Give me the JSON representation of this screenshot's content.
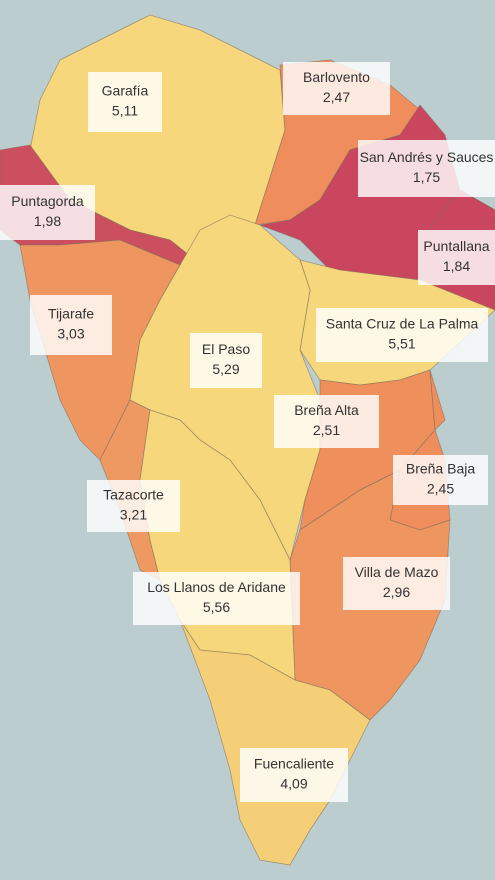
{
  "chart_data": {
    "type": "choropleth",
    "categories": [
      "Garafía",
      "Barlovento",
      "San Andrés y Sauces",
      "Puntagorda",
      "Puntallana",
      "Tijarafe",
      "Santa Cruz de La Palma",
      "El Paso",
      "Breña Alta",
      "Breña Baja",
      "Tazacorte",
      "Villa de Mazo",
      "Los Llanos de Aridane",
      "Fuencaliente"
    ],
    "values": [
      5.11,
      2.47,
      1.75,
      1.98,
      1.84,
      3.03,
      5.51,
      5.29,
      2.51,
      2.45,
      3.21,
      2.96,
      5.56,
      4.09
    ],
    "value_labels": [
      "5,11",
      "2,47",
      "1,75",
      "1,98",
      "1,84",
      "3,03",
      "5,51",
      "5,29",
      "2,51",
      "2,45",
      "3,21",
      "2,96",
      "5,56",
      "4,09"
    ],
    "colors": [
      "#f6d77c",
      "#ef8d5c",
      "#c9465e",
      "#cc4f60",
      "#c9465e",
      "#ef9560",
      "#f6d77c",
      "#f6d77c",
      "#ef8f5c",
      "#ef8d5c",
      "#ef9962",
      "#ef9560",
      "#f6d77c",
      "#f5cf78"
    ]
  }
}
